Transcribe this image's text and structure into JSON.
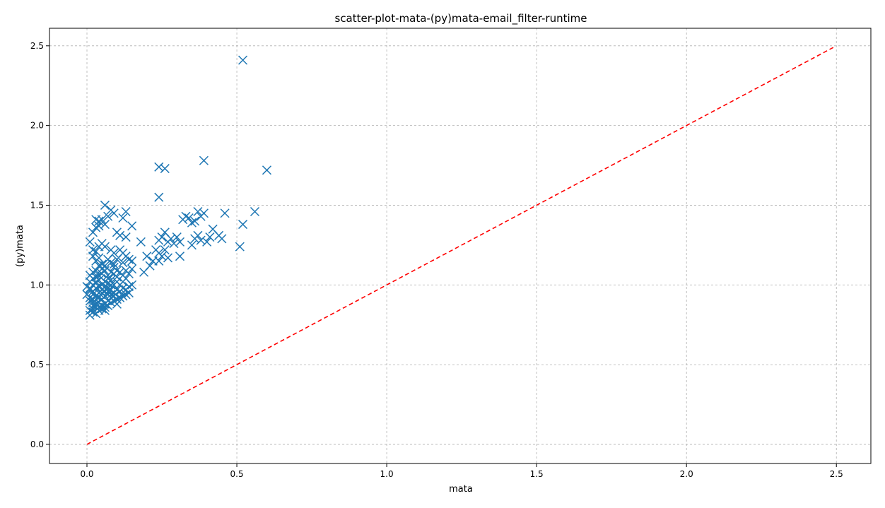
{
  "chart_data": {
    "type": "scatter",
    "title": "scatter-plot-mata-(py)mata-email_filter-runtime",
    "xlabel": "mata",
    "ylabel": "(py)mata",
    "xlim": [
      -0.125,
      2.615
    ],
    "ylim": [
      -0.12,
      2.61
    ],
    "xticks": [
      "0.0",
      "0.5",
      "1.0",
      "1.5",
      "2.0",
      "2.5"
    ],
    "yticks": [
      "0.0",
      "0.5",
      "1.0",
      "1.5",
      "2.0",
      "2.5"
    ],
    "grid": true,
    "marker": "x",
    "colors": {
      "points": "#1f77b4",
      "reference_line": "#ff0000",
      "grid": "#b0b0b0",
      "axes": "#000000"
    },
    "reference_line": {
      "style": "dashed",
      "x": [
        0,
        2.49
      ],
      "y": [
        0,
        2.49
      ]
    },
    "series": [
      {
        "points": [
          [
            0.52,
            2.41
          ],
          [
            0.39,
            1.78
          ],
          [
            0.6,
            1.72
          ],
          [
            0.24,
            1.74
          ],
          [
            0.26,
            1.73
          ],
          [
            0.24,
            1.55
          ],
          [
            0.56,
            1.46
          ],
          [
            0.46,
            1.45
          ],
          [
            0.52,
            1.38
          ],
          [
            0.51,
            1.24
          ],
          [
            0.45,
            1.29
          ],
          [
            0.44,
            1.31
          ],
          [
            0.42,
            1.35
          ],
          [
            0.4,
            1.27
          ],
          [
            0.41,
            1.3
          ],
          [
            0.39,
            1.45
          ],
          [
            0.38,
            1.43
          ],
          [
            0.37,
            1.46
          ],
          [
            0.36,
            1.4
          ],
          [
            0.35,
            1.39
          ],
          [
            0.34,
            1.42
          ],
          [
            0.33,
            1.43
          ],
          [
            0.32,
            1.41
          ],
          [
            0.36,
            1.29
          ],
          [
            0.37,
            1.31
          ],
          [
            0.38,
            1.28
          ],
          [
            0.35,
            1.25
          ],
          [
            0.31,
            1.27
          ],
          [
            0.3,
            1.3
          ],
          [
            0.29,
            1.26
          ],
          [
            0.28,
            1.29
          ],
          [
            0.27,
            1.27
          ],
          [
            0.26,
            1.33
          ],
          [
            0.25,
            1.3
          ],
          [
            0.24,
            1.28
          ],
          [
            0.23,
            1.22
          ],
          [
            0.24,
            1.2
          ],
          [
            0.25,
            1.18
          ],
          [
            0.22,
            1.15
          ],
          [
            0.21,
            1.12
          ],
          [
            0.2,
            1.18
          ],
          [
            0.18,
            1.27
          ],
          [
            0.19,
            1.08
          ],
          [
            0.31,
            1.18
          ],
          [
            0.27,
            1.17
          ],
          [
            0.26,
            1.22
          ],
          [
            0.24,
            1.15
          ],
          [
            0.06,
            1.5
          ],
          [
            0.08,
            1.47
          ],
          [
            0.09,
            1.45
          ],
          [
            0.07,
            1.43
          ],
          [
            0.05,
            1.41
          ],
          [
            0.04,
            1.4
          ],
          [
            0.03,
            1.41
          ],
          [
            0.04,
            1.37
          ],
          [
            0.03,
            1.36
          ],
          [
            0.02,
            1.33
          ],
          [
            0.06,
            1.38
          ],
          [
            0.13,
            1.46
          ],
          [
            0.12,
            1.42
          ],
          [
            0.15,
            1.37
          ],
          [
            0.1,
            1.33
          ],
          [
            0.11,
            1.31
          ],
          [
            0.13,
            1.3
          ],
          [
            0.01,
            1.27
          ],
          [
            0.02,
            1.22
          ],
          [
            0.04,
            1.24
          ],
          [
            0.05,
            1.26
          ],
          [
            0.03,
            1.21
          ],
          [
            0.02,
            1.18
          ],
          [
            0.03,
            1.15
          ],
          [
            0.04,
            1.17
          ],
          [
            0.06,
            1.24
          ],
          [
            0.08,
            1.22
          ],
          [
            0.09,
            1.2
          ],
          [
            0.11,
            1.22
          ],
          [
            0.12,
            1.2
          ],
          [
            0.13,
            1.18
          ],
          [
            0.14,
            1.16
          ],
          [
            0.15,
            1.15
          ],
          [
            0.12,
            1.14
          ],
          [
            0.1,
            1.16
          ],
          [
            0.09,
            1.13
          ],
          [
            0.08,
            1.14
          ],
          [
            0.07,
            1.16
          ],
          [
            0.06,
            1.12
          ],
          [
            0.05,
            1.1
          ],
          [
            0.04,
            1.12
          ],
          [
            0.03,
            1.09
          ],
          [
            0.02,
            1.08
          ],
          [
            0.01,
            1.06
          ],
          [
            0.02,
            1.04
          ],
          [
            0.03,
            1.05
          ],
          [
            0.04,
            1.03
          ],
          [
            0.05,
            1.07
          ],
          [
            0.06,
            1.09
          ],
          [
            0.07,
            1.06
          ],
          [
            0.08,
            1.08
          ],
          [
            0.09,
            1.07
          ],
          [
            0.1,
            1.05
          ],
          [
            0.11,
            1.08
          ],
          [
            0.12,
            1.06
          ],
          [
            0.13,
            1.09
          ],
          [
            0.14,
            1.07
          ],
          [
            0.15,
            1.1
          ],
          [
            0.13,
            1.04
          ],
          [
            0.12,
            1.02
          ],
          [
            0.11,
            1.0
          ],
          [
            0.1,
            1.02
          ],
          [
            0.09,
            1.0
          ],
          [
            0.08,
            1.03
          ],
          [
            0.07,
            1.01
          ],
          [
            0.06,
            1.02
          ],
          [
            0.05,
            1.0
          ],
          [
            0.04,
            0.99
          ],
          [
            0.03,
            1.01
          ],
          [
            0.02,
            1.0
          ],
          [
            0.01,
            1.02
          ],
          [
            0.0,
            0.99
          ],
          [
            0.01,
            0.97
          ],
          [
            0.02,
            0.96
          ],
          [
            0.03,
            0.98
          ],
          [
            0.04,
            0.95
          ],
          [
            0.05,
            0.97
          ],
          [
            0.06,
            0.96
          ],
          [
            0.07,
            0.98
          ],
          [
            0.08,
            0.97
          ],
          [
            0.09,
            0.95
          ],
          [
            0.1,
            0.97
          ],
          [
            0.11,
            0.96
          ],
          [
            0.12,
            0.98
          ],
          [
            0.13,
            0.97
          ],
          [
            0.14,
            0.99
          ],
          [
            0.15,
            1.0
          ],
          [
            0.14,
            0.95
          ],
          [
            0.13,
            0.94
          ],
          [
            0.12,
            0.93
          ],
          [
            0.11,
            0.92
          ],
          [
            0.1,
            0.91
          ],
          [
            0.09,
            0.93
          ],
          [
            0.08,
            0.92
          ],
          [
            0.07,
            0.94
          ],
          [
            0.06,
            0.93
          ],
          [
            0.05,
            0.91
          ],
          [
            0.04,
            0.92
          ],
          [
            0.03,
            0.93
          ],
          [
            0.02,
            0.91
          ],
          [
            0.01,
            0.92
          ],
          [
            0.0,
            0.94
          ],
          [
            0.01,
            0.9
          ],
          [
            0.02,
            0.89
          ],
          [
            0.03,
            0.88
          ],
          [
            0.04,
            0.89
          ],
          [
            0.05,
            0.87
          ],
          [
            0.06,
            0.88
          ],
          [
            0.07,
            0.9
          ],
          [
            0.08,
            0.89
          ],
          [
            0.09,
            0.9
          ],
          [
            0.1,
            0.88
          ],
          [
            0.03,
            0.86
          ],
          [
            0.02,
            0.85
          ],
          [
            0.01,
            0.84
          ],
          [
            0.02,
            0.83
          ],
          [
            0.03,
            0.82
          ],
          [
            0.01,
            0.81
          ],
          [
            0.04,
            0.84
          ],
          [
            0.05,
            0.85
          ],
          [
            0.06,
            0.86
          ],
          [
            0.07,
            0.87
          ],
          [
            0.02,
            0.87
          ],
          [
            0.04,
            0.86
          ],
          [
            0.06,
            0.84
          ],
          [
            0.05,
            0.95
          ],
          [
            0.06,
            0.99
          ],
          [
            0.07,
            1.04
          ],
          [
            0.08,
            1.0
          ],
          [
            0.09,
            1.11
          ],
          [
            0.1,
            1.09
          ],
          [
            0.05,
            1.13
          ],
          [
            0.04,
            1.06
          ],
          [
            0.03,
            1.02
          ],
          [
            0.02,
            0.94
          ],
          [
            0.01,
            0.98
          ],
          [
            0.07,
            0.96
          ],
          [
            0.08,
            0.94
          ]
        ]
      }
    ]
  }
}
